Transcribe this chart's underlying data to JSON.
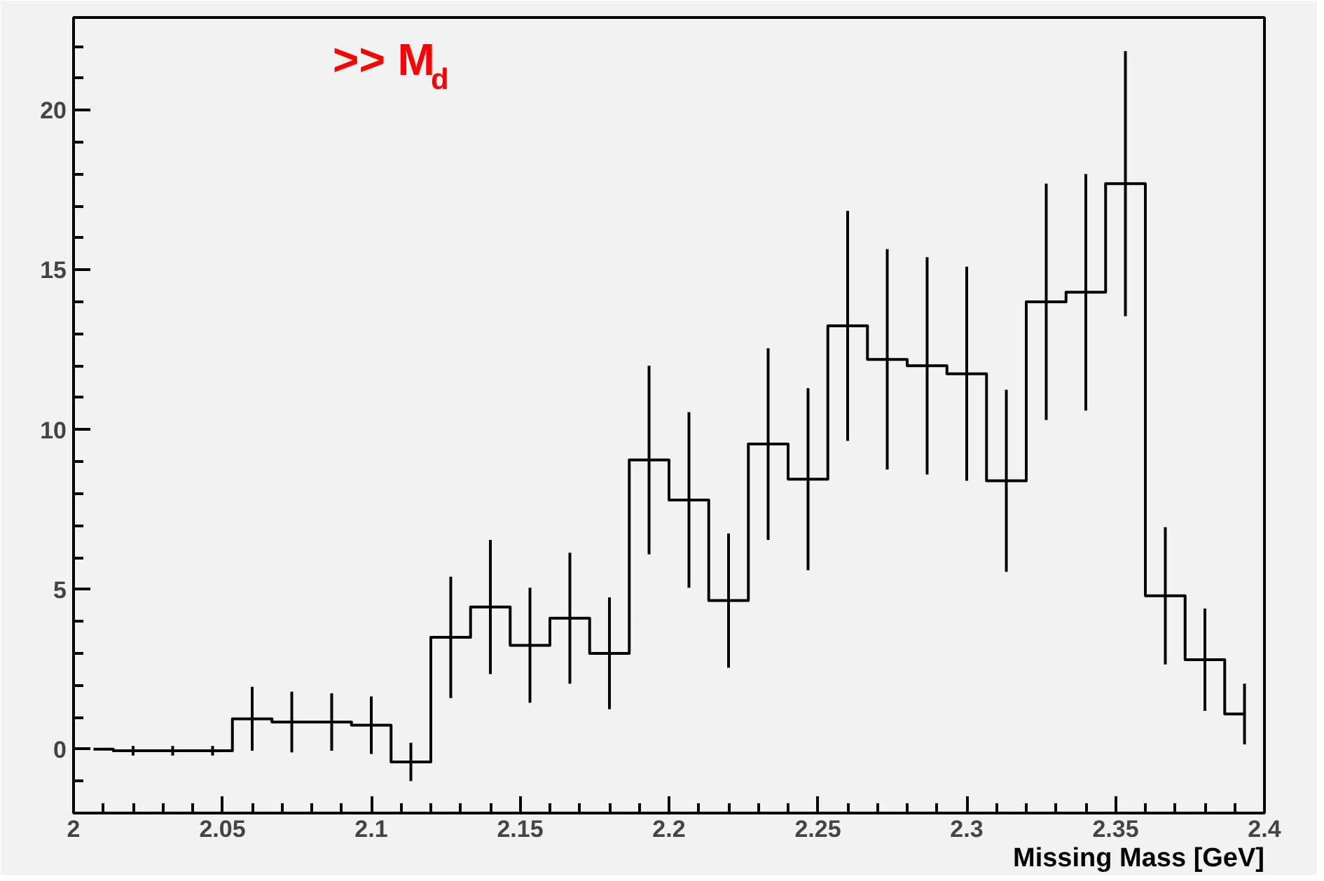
{
  "chart_data": {
    "type": "step",
    "xlabel": "Missing Mass [GeV]",
    "annotations": [
      ">> M$_{d}$"
    ],
    "x": [
      2.0067,
      2.02,
      2.0333,
      2.0467,
      2.06,
      2.0733,
      2.0867,
      2.1,
      2.1133,
      2.1267,
      2.14,
      2.1533,
      2.1667,
      2.18,
      2.1933,
      2.2067,
      2.22,
      2.2333,
      2.2467,
      2.26,
      2.2733,
      2.2867,
      2.3,
      2.3133,
      2.3267,
      2.34,
      2.3533,
      2.3667,
      2.38,
      2.3933
    ],
    "values": [
      0,
      -0.05,
      -0.05,
      -0.05,
      0.95,
      0.85,
      0.85,
      0.75,
      -0.4,
      3.5,
      4.45,
      3.25,
      4.1,
      3.0,
      9.05,
      7.8,
      4.65,
      9.55,
      8.45,
      13.25,
      12.2,
      12.0,
      11.75,
      8.4,
      14.0,
      14.3,
      17.7,
      4.8,
      2.8,
      1.1
    ],
    "errors": [
      null,
      0.15,
      0.15,
      0.15,
      1.0,
      0.95,
      0.9,
      0.9,
      0.6,
      1.9,
      2.1,
      1.8,
      2.05,
      1.75,
      2.95,
      2.75,
      2.1,
      3.0,
      2.85,
      3.6,
      3.45,
      3.4,
      3.35,
      2.85,
      3.7,
      3.7,
      4.15,
      2.15,
      1.6,
      0.95
    ],
    "color": "#000000",
    "xlim": [
      2,
      2.4
    ],
    "ylim": [
      -2,
      22.9
    ],
    "xticks": [
      2,
      2.05,
      2.1,
      2.15,
      2.2,
      2.25,
      2.3,
      2.35,
      2.4
    ],
    "yticks": [
      0,
      5,
      10,
      15,
      20
    ],
    "grid": false
  }
}
